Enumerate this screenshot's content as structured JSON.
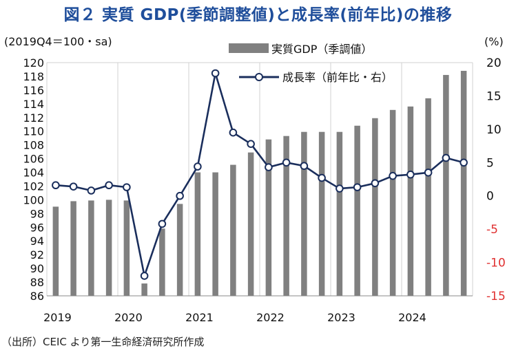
{
  "title": "図２ 実質 GDP(季節調整値)と成長率(前年比)の推移",
  "source": "（出所）CEIC より第一生命経済研究所作成",
  "colors": {
    "title": "#1f4e9b",
    "bar": "#808080",
    "line": "#1a2e5c",
    "negative_tick": "#e03030",
    "positive_tick": "#111111"
  },
  "chart_data": {
    "type": "bar+line",
    "left_axis_label": "(2019Q4＝100・sa)",
    "right_axis_label": "(%)",
    "left_ylim": [
      86,
      120
    ],
    "left_ticks": [
      86,
      88,
      90,
      92,
      94,
      96,
      98,
      100,
      102,
      104,
      106,
      108,
      110,
      112,
      114,
      116,
      118,
      120
    ],
    "right_ylim": [
      -15,
      20
    ],
    "right_ticks": [
      -15,
      -10,
      -5,
      0,
      5,
      10,
      15,
      20
    ],
    "right_tick_labels": [
      "-15",
      "-10",
      "-5",
      "0",
      "5",
      "10",
      "15",
      "20"
    ],
    "x_year_labels": [
      "2019",
      "2020",
      "2021",
      "2022",
      "2023",
      "2024"
    ],
    "quarters": [
      "2019Q1",
      "2019Q2",
      "2019Q3",
      "2019Q4",
      "2020Q1",
      "2020Q2",
      "2020Q3",
      "2020Q4",
      "2021Q1",
      "2021Q2",
      "2021Q3",
      "2021Q4",
      "2022Q1",
      "2022Q2",
      "2022Q3",
      "2022Q4",
      "2023Q1",
      "2023Q2",
      "2023Q3",
      "2023Q4",
      "2024Q1",
      "2024Q2",
      "2024Q3",
      "2024Q4"
    ],
    "series": [
      {
        "name": "実質GDP（季調値）",
        "type": "bar",
        "axis": "left",
        "values": [
          99.0,
          99.8,
          99.9,
          100.0,
          99.9,
          87.8,
          95.8,
          99.4,
          104.0,
          104.0,
          105.1,
          106.9,
          108.8,
          109.3,
          109.9,
          109.9,
          109.9,
          110.8,
          111.9,
          113.1,
          113.6,
          114.8,
          118.2,
          118.8
        ]
      },
      {
        "name": "成長率（前年比・右）",
        "type": "line",
        "axis": "right",
        "values": [
          1.6,
          1.4,
          0.8,
          1.6,
          1.3,
          -12.0,
          -4.2,
          0.0,
          4.4,
          18.4,
          9.5,
          7.8,
          4.3,
          5.0,
          4.5,
          2.7,
          1.1,
          1.3,
          1.9,
          3.0,
          3.2,
          3.5,
          5.7,
          5.0
        ]
      }
    ]
  }
}
